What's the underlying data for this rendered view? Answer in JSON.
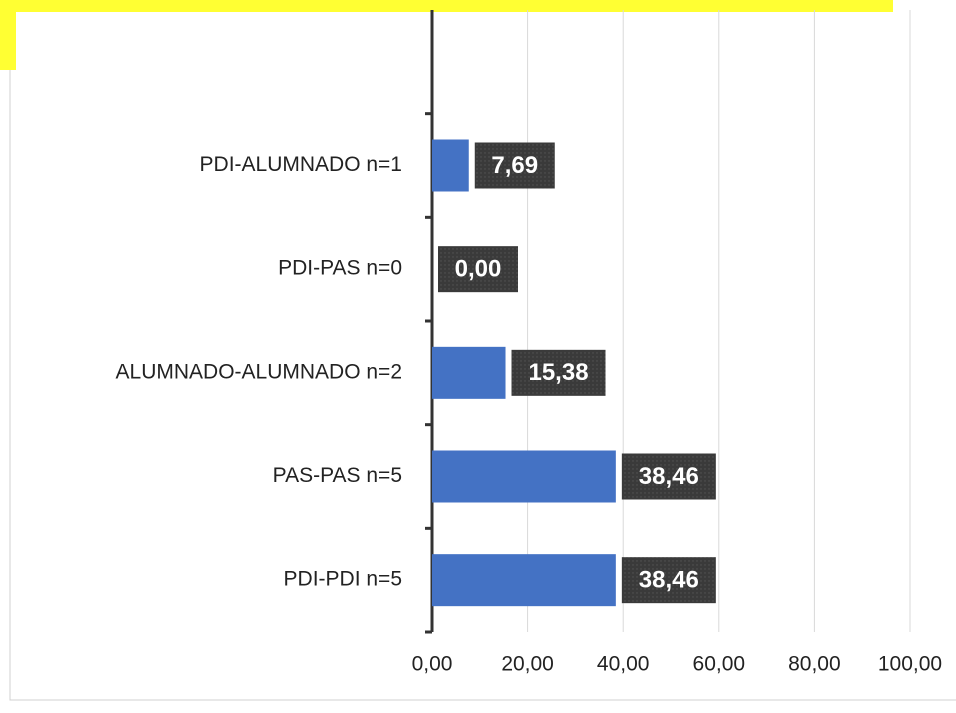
{
  "chart_data": {
    "type": "bar",
    "orientation": "horizontal",
    "categories": [
      null,
      "PDI-ALUMNADO n=1",
      "PDI-PAS n=0",
      "ALUMNADO-ALUMNADO n=2",
      "PAS-PAS n=5",
      "PDI-PDI n=5"
    ],
    "values": [
      null,
      7.69,
      0,
      15.38,
      38.46,
      38.46
    ],
    "value_labels": [
      null,
      "7,69",
      "0,00",
      "15,38",
      "38,46",
      "38,46"
    ],
    "color": "#4472c4",
    "xlim": [
      0,
      100
    ],
    "xticks": [
      {
        "value": 0,
        "label": "0,00"
      },
      {
        "value": 20,
        "label": "20,00"
      },
      {
        "value": 40,
        "label": "40,00"
      },
      {
        "value": 60,
        "label": "60,00"
      },
      {
        "value": 80,
        "label": "80,00"
      },
      {
        "value": 100,
        "label": "100,00"
      }
    ],
    "grid": true
  }
}
